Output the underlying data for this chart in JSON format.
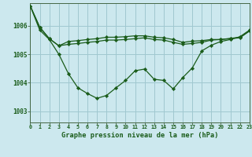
{
  "title": "Graphe pression niveau de la mer (hPa)",
  "bg_color": "#cce8ee",
  "grid_color": "#a0c8d0",
  "line_color": "#1a5c1a",
  "xlim": [
    0,
    23
  ],
  "ylim": [
    1002.6,
    1006.8
  ],
  "yticks": [
    1003,
    1004,
    1005,
    1006
  ],
  "xticks": [
    0,
    1,
    2,
    3,
    4,
    5,
    6,
    7,
    8,
    9,
    10,
    11,
    12,
    13,
    14,
    15,
    16,
    17,
    18,
    19,
    20,
    21,
    22,
    23
  ],
  "series": [
    [
      1006.7,
      1005.95,
      1005.55,
      1005.3,
      1005.35,
      1005.38,
      1005.42,
      1005.45,
      1005.5,
      1005.5,
      1005.52,
      1005.55,
      1005.58,
      1005.52,
      1005.5,
      1005.42,
      1005.35,
      1005.38,
      1005.42,
      1005.5,
      1005.52,
      1005.55,
      1005.58,
      1005.82
    ],
    [
      1006.7,
      1005.95,
      1005.55,
      1005.3,
      1005.45,
      1005.48,
      1005.52,
      1005.55,
      1005.6,
      1005.6,
      1005.62,
      1005.65,
      1005.65,
      1005.6,
      1005.58,
      1005.52,
      1005.42,
      1005.46,
      1005.48,
      1005.52,
      1005.52,
      1005.56,
      1005.6,
      1005.82
    ],
    [
      1006.7,
      1005.85,
      1005.52,
      1005.0,
      1004.32,
      1003.82,
      1003.62,
      1003.45,
      1003.55,
      1003.82,
      1004.08,
      1004.42,
      1004.48,
      1004.12,
      1004.08,
      1003.78,
      1004.18,
      1004.52,
      1005.12,
      1005.32,
      1005.45,
      1005.52,
      1005.62,
      1005.85
    ]
  ]
}
